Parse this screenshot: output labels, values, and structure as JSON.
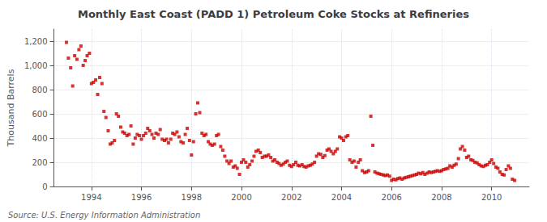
{
  "chart_data": {
    "type": "scatter",
    "title": "Monthly East Coast (PADD 1) Petroleum Coke Stocks at Refineries",
    "ylabel": "Thousand Barrels",
    "annotations": [
      "Source: U.S. Energy Information Administration"
    ],
    "color": "#cc0000",
    "marker": "square",
    "grid": true,
    "xlim": [
      1992.5,
      2011.5
    ],
    "xticks": [
      1994,
      1996,
      1998,
      2000,
      2002,
      2004,
      2006,
      2008,
      2010
    ],
    "ylim": [
      0,
      1300
    ],
    "yticks": [
      0,
      200,
      400,
      600,
      800,
      {
        "value": 1000,
        "label": "1,000"
      },
      {
        "value": 1200,
        "label": "1,200"
      }
    ],
    "x": [
      1993.0,
      1993.08,
      1993.17,
      1993.25,
      1993.33,
      1993.42,
      1993.5,
      1993.58,
      1993.67,
      1993.75,
      1993.83,
      1993.92,
      1994.0,
      1994.08,
      1994.17,
      1994.25,
      1994.33,
      1994.42,
      1994.5,
      1994.58,
      1994.67,
      1994.75,
      1994.83,
      1994.92,
      1995.0,
      1995.08,
      1995.17,
      1995.25,
      1995.33,
      1995.42,
      1995.5,
      1995.58,
      1995.67,
      1995.75,
      1995.83,
      1995.92,
      1996.0,
      1996.08,
      1996.17,
      1996.25,
      1996.33,
      1996.42,
      1996.5,
      1996.58,
      1996.67,
      1996.75,
      1996.83,
      1996.92,
      1997.0,
      1997.08,
      1997.17,
      1997.25,
      1997.33,
      1997.42,
      1997.5,
      1997.58,
      1997.67,
      1997.75,
      1997.83,
      1997.92,
      1998.0,
      1998.08,
      1998.17,
      1998.25,
      1998.33,
      1998.42,
      1998.5,
      1998.58,
      1998.67,
      1998.75,
      1998.83,
      1998.92,
      1999.0,
      1999.08,
      1999.17,
      1999.25,
      1999.33,
      1999.42,
      1999.5,
      1999.58,
      1999.67,
      1999.75,
      1999.83,
      1999.92,
      2000.0,
      2000.08,
      2000.17,
      2000.25,
      2000.33,
      2000.42,
      2000.5,
      2000.58,
      2000.67,
      2000.75,
      2000.83,
      2000.92,
      2001.0,
      2001.08,
      2001.17,
      2001.25,
      2001.33,
      2001.42,
      2001.5,
      2001.58,
      2001.67,
      2001.75,
      2001.83,
      2001.92,
      2002.0,
      2002.08,
      2002.17,
      2002.25,
      2002.33,
      2002.42,
      2002.5,
      2002.58,
      2002.67,
      2002.75,
      2002.83,
      2002.92,
      2003.0,
      2003.08,
      2003.17,
      2003.25,
      2003.33,
      2003.42,
      2003.5,
      2003.58,
      2003.67,
      2003.75,
      2003.83,
      2003.92,
      2004.0,
      2004.08,
      2004.17,
      2004.25,
      2004.33,
      2004.42,
      2004.5,
      2004.58,
      2004.67,
      2004.75,
      2004.83,
      2004.92,
      2005.0,
      2005.08,
      2005.17,
      2005.25,
      2005.33,
      2005.42,
      2005.5,
      2005.58,
      2005.67,
      2005.75,
      2005.83,
      2005.92,
      2006.0,
      2006.08,
      2006.17,
      2006.25,
      2006.33,
      2006.42,
      2006.5,
      2006.58,
      2006.67,
      2006.75,
      2006.83,
      2006.92,
      2007.0,
      2007.08,
      2007.17,
      2007.25,
      2007.33,
      2007.42,
      2007.5,
      2007.58,
      2007.67,
      2007.75,
      2007.83,
      2007.92,
      2008.0,
      2008.08,
      2008.17,
      2008.25,
      2008.33,
      2008.42,
      2008.5,
      2008.58,
      2008.67,
      2008.75,
      2008.83,
      2008.92,
      2009.0,
      2009.08,
      2009.17,
      2009.25,
      2009.33,
      2009.42,
      2009.5,
      2009.58,
      2009.67,
      2009.75,
      2009.83,
      2009.92,
      2010.0,
      2010.08,
      2010.17,
      2010.25,
      2010.33,
      2010.42,
      2010.5,
      2010.58,
      2010.67,
      2010.75,
      2010.83,
      2010.92
    ],
    "values": [
      1190,
      1060,
      980,
      830,
      1080,
      1050,
      1130,
      1160,
      1000,
      1040,
      1080,
      1100,
      850,
      860,
      880,
      760,
      900,
      850,
      620,
      570,
      460,
      350,
      360,
      380,
      600,
      580,
      490,
      450,
      440,
      420,
      430,
      500,
      350,
      400,
      430,
      420,
      390,
      420,
      440,
      480,
      460,
      430,
      400,
      440,
      430,
      470,
      390,
      380,
      390,
      360,
      390,
      440,
      430,
      450,
      410,
      370,
      360,
      430,
      480,
      380,
      260,
      370,
      600,
      690,
      610,
      440,
      420,
      430,
      370,
      350,
      340,
      350,
      420,
      430,
      330,
      300,
      250,
      210,
      190,
      210,
      160,
      170,
      150,
      100,
      200,
      220,
      200,
      160,
      180,
      210,
      250,
      290,
      300,
      280,
      240,
      250,
      250,
      260,
      240,
      210,
      220,
      200,
      190,
      175,
      185,
      200,
      210,
      175,
      165,
      180,
      200,
      175,
      170,
      180,
      165,
      160,
      170,
      175,
      185,
      200,
      250,
      270,
      265,
      240,
      255,
      300,
      310,
      290,
      270,
      290,
      310,
      410,
      400,
      380,
      410,
      420,
      220,
      200,
      210,
      160,
      200,
      220,
      130,
      115,
      120,
      130,
      580,
      340,
      120,
      110,
      105,
      100,
      95,
      90,
      95,
      85,
      50,
      60,
      55,
      65,
      70,
      60,
      70,
      75,
      80,
      85,
      90,
      95,
      100,
      110,
      105,
      115,
      100,
      110,
      120,
      115,
      120,
      125,
      130,
      125,
      130,
      140,
      145,
      150,
      170,
      160,
      175,
      185,
      230,
      310,
      330,
      300,
      240,
      250,
      220,
      215,
      200,
      195,
      180,
      170,
      165,
      175,
      180,
      200,
      220,
      190,
      160,
      150,
      120,
      100,
      95,
      140,
      170,
      150,
      60,
      50
    ]
  }
}
